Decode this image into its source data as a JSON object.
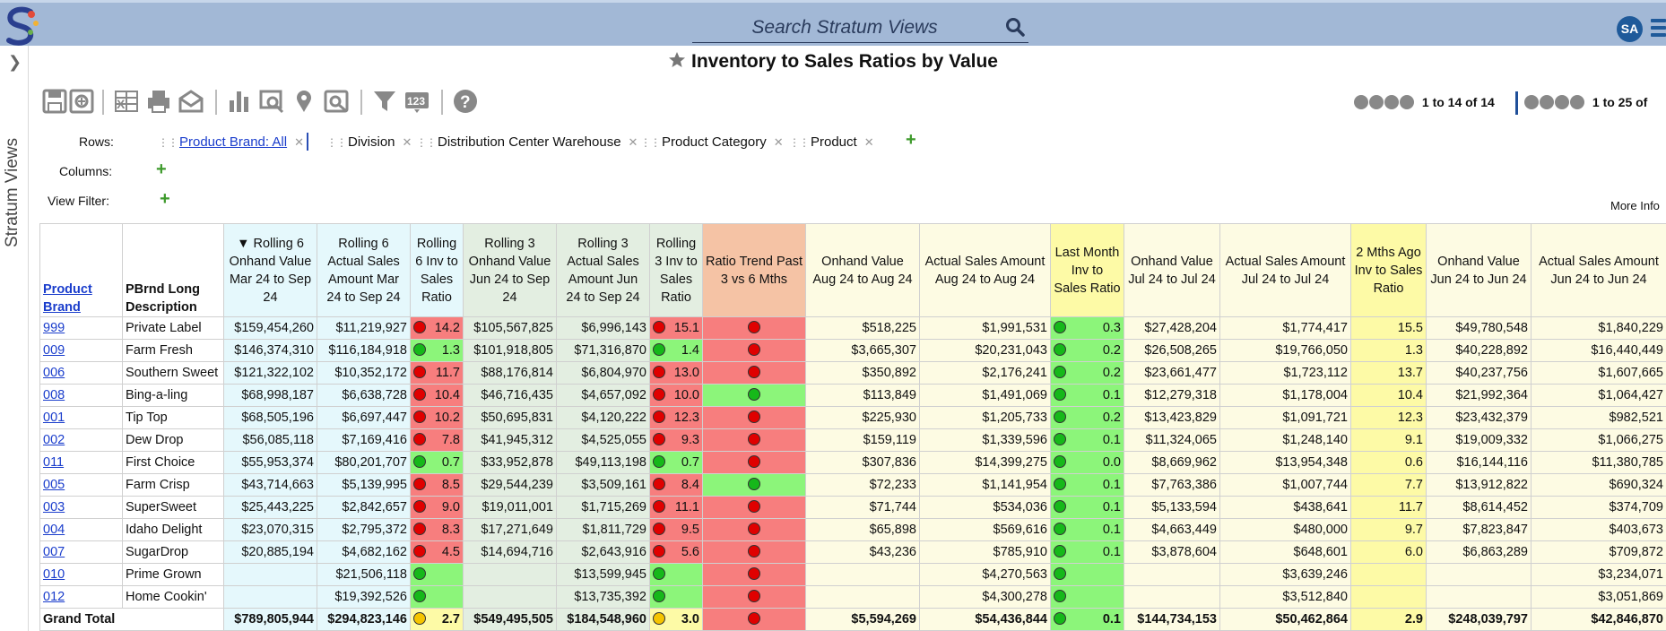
{
  "header": {
    "search_placeholder": "Search Stratum Views",
    "avatar_initials": "SA"
  },
  "side_panel": {
    "label": "Stratum Views"
  },
  "page": {
    "title": "Inventory to Sales Ratios by Value"
  },
  "pager": {
    "rows_text": "1 to 14 of 14",
    "cols_text": "1 to 25 of"
  },
  "controls": {
    "rows_label": "Rows:",
    "columns_label": "Columns:",
    "view_filter_label": "View Filter:",
    "row_chips": [
      "Product Brand: All",
      "Division",
      "Distribution Center Warehouse",
      "Product Category",
      "Product"
    ],
    "more_info": "More Info"
  },
  "colors": {
    "red": "#f77e7e",
    "green": "#8cf57a",
    "yellow": "#fdfaa6"
  },
  "table": {
    "headers": [
      "Product Brand",
      "PBrnd Long Description",
      "▼ Rolling 6 Onhand Value Mar 24 to Sep 24",
      "Rolling 6 Actual Sales Amount Mar 24 to Sep 24",
      "Rolling 6 Inv to Sales Ratio",
      "Rolling 3 Onhand Value Jun 24 to Sep 24",
      "Rolling 3 Actual Sales Amount Jun 24 to Sep 24",
      "Rolling 3 Inv to Sales Ratio",
      "Ratio Trend Past 3 vs 6 Mths",
      "Onhand Value Aug 24 to Aug 24",
      "Actual Sales Amount Aug 24 to Aug 24",
      "Last Month Inv to Sales Ratio",
      "Onhand Value Jul 24 to Jul 24",
      "Actual Sales Amount Jul 24 to Jul 24",
      "2 Mths Ago Inv to Sales Ratio",
      "Onhand Value Jun 24 to Jun 24",
      "Actual Sales Amount Jun 24 to Jun 24"
    ],
    "rows": [
      {
        "code": "999",
        "desc": "Private Label",
        "r6ov": "$159,454,260",
        "r6sa": "$11,219,927",
        "r6r": "14.2",
        "r6c": "red",
        "r3ov": "$105,567,825",
        "r3sa": "$6,996,143",
        "r3r": "15.1",
        "r3c": "red",
        "trend": "red",
        "aug_ov": "$518,225",
        "aug_sa": "$1,991,531",
        "lm": "0.3",
        "lmc": "green",
        "jul_ov": "$27,428,204",
        "jul_sa": "$1,774,417",
        "m2": "15.5",
        "jun_ov": "$49,780,548",
        "jun_sa": "$1,840,229"
      },
      {
        "code": "009",
        "desc": "Farm Fresh",
        "r6ov": "$146,374,310",
        "r6sa": "$116,184,918",
        "r6r": "1.3",
        "r6c": "green",
        "r3ov": "$101,918,805",
        "r3sa": "$71,316,870",
        "r3r": "1.4",
        "r3c": "green",
        "trend": "red",
        "aug_ov": "$3,665,307",
        "aug_sa": "$20,231,043",
        "lm": "0.2",
        "lmc": "green",
        "jul_ov": "$26,508,265",
        "jul_sa": "$19,766,050",
        "m2": "1.3",
        "jun_ov": "$40,228,892",
        "jun_sa": "$16,440,449"
      },
      {
        "code": "006",
        "desc": "Southern Sweet",
        "r6ov": "$121,322,102",
        "r6sa": "$10,352,172",
        "r6r": "11.7",
        "r6c": "red",
        "r3ov": "$88,176,814",
        "r3sa": "$6,804,970",
        "r3r": "13.0",
        "r3c": "red",
        "trend": "red",
        "aug_ov": "$350,892",
        "aug_sa": "$2,176,241",
        "lm": "0.2",
        "lmc": "green",
        "jul_ov": "$23,661,477",
        "jul_sa": "$1,723,112",
        "m2": "13.7",
        "jun_ov": "$40,237,756",
        "jun_sa": "$1,607,665"
      },
      {
        "code": "008",
        "desc": "Bing-a-ling",
        "r6ov": "$68,998,187",
        "r6sa": "$6,638,728",
        "r6r": "10.4",
        "r6c": "red",
        "r3ov": "$46,716,435",
        "r3sa": "$4,657,092",
        "r3r": "10.0",
        "r3c": "red",
        "trend": "green",
        "aug_ov": "$113,849",
        "aug_sa": "$1,491,069",
        "lm": "0.1",
        "lmc": "green",
        "jul_ov": "$12,279,318",
        "jul_sa": "$1,178,004",
        "m2": "10.4",
        "jun_ov": "$21,992,364",
        "jun_sa": "$1,064,427"
      },
      {
        "code": "001",
        "desc": "Tip Top",
        "r6ov": "$68,505,196",
        "r6sa": "$6,697,447",
        "r6r": "10.2",
        "r6c": "red",
        "r3ov": "$50,695,831",
        "r3sa": "$4,120,222",
        "r3r": "12.3",
        "r3c": "red",
        "trend": "red",
        "aug_ov": "$225,930",
        "aug_sa": "$1,205,733",
        "lm": "0.2",
        "lmc": "green",
        "jul_ov": "$13,423,829",
        "jul_sa": "$1,091,721",
        "m2": "12.3",
        "jun_ov": "$23,432,379",
        "jun_sa": "$982,521"
      },
      {
        "code": "002",
        "desc": "Dew Drop",
        "r6ov": "$56,085,118",
        "r6sa": "$7,169,416",
        "r6r": "7.8",
        "r6c": "red",
        "r3ov": "$41,945,312",
        "r3sa": "$4,525,055",
        "r3r": "9.3",
        "r3c": "red",
        "trend": "red",
        "aug_ov": "$159,119",
        "aug_sa": "$1,339,596",
        "lm": "0.1",
        "lmc": "green",
        "jul_ov": "$11,324,065",
        "jul_sa": "$1,248,140",
        "m2": "9.1",
        "jun_ov": "$19,009,332",
        "jun_sa": "$1,066,275"
      },
      {
        "code": "011",
        "desc": "First Choice",
        "r6ov": "$55,953,374",
        "r6sa": "$80,201,707",
        "r6r": "0.7",
        "r6c": "green",
        "r3ov": "$33,952,878",
        "r3sa": "$49,113,198",
        "r3r": "0.7",
        "r3c": "green",
        "trend": "red",
        "aug_ov": "$307,836",
        "aug_sa": "$14,399,275",
        "lm": "0.0",
        "lmc": "green",
        "jul_ov": "$8,669,962",
        "jul_sa": "$13,954,348",
        "m2": "0.6",
        "jun_ov": "$16,144,116",
        "jun_sa": "$11,380,785"
      },
      {
        "code": "005",
        "desc": "Farm Crisp",
        "r6ov": "$43,714,663",
        "r6sa": "$5,139,995",
        "r6r": "8.5",
        "r6c": "red",
        "r3ov": "$29,544,239",
        "r3sa": "$3,509,161",
        "r3r": "8.4",
        "r3c": "red",
        "trend": "green",
        "aug_ov": "$72,233",
        "aug_sa": "$1,141,954",
        "lm": "0.1",
        "lmc": "green",
        "jul_ov": "$7,763,386",
        "jul_sa": "$1,007,744",
        "m2": "7.7",
        "jun_ov": "$13,912,822",
        "jun_sa": "$690,324"
      },
      {
        "code": "003",
        "desc": "SuperSweet",
        "r6ov": "$25,443,225",
        "r6sa": "$2,842,657",
        "r6r": "9.0",
        "r6c": "red",
        "r3ov": "$19,011,001",
        "r3sa": "$1,715,269",
        "r3r": "11.1",
        "r3c": "red",
        "trend": "red",
        "aug_ov": "$71,744",
        "aug_sa": "$534,036",
        "lm": "0.1",
        "lmc": "green",
        "jul_ov": "$5,133,594",
        "jul_sa": "$438,641",
        "m2": "11.7",
        "jun_ov": "$8,614,452",
        "jun_sa": "$374,709"
      },
      {
        "code": "004",
        "desc": "Idaho Delight",
        "r6ov": "$23,070,315",
        "r6sa": "$2,795,372",
        "r6r": "8.3",
        "r6c": "red",
        "r3ov": "$17,271,649",
        "r3sa": "$1,811,729",
        "r3r": "9.5",
        "r3c": "red",
        "trend": "red",
        "aug_ov": "$65,898",
        "aug_sa": "$569,616",
        "lm": "0.1",
        "lmc": "green",
        "jul_ov": "$4,663,449",
        "jul_sa": "$480,000",
        "m2": "9.7",
        "jun_ov": "$7,823,847",
        "jun_sa": "$403,673"
      },
      {
        "code": "007",
        "desc": "SugarDrop",
        "r6ov": "$20,885,194",
        "r6sa": "$4,682,162",
        "r6r": "4.5",
        "r6c": "red",
        "r3ov": "$14,694,716",
        "r3sa": "$2,643,916",
        "r3r": "5.6",
        "r3c": "red",
        "trend": "red",
        "aug_ov": "$43,236",
        "aug_sa": "$785,910",
        "lm": "0.1",
        "lmc": "green",
        "jul_ov": "$3,878,604",
        "jul_sa": "$648,601",
        "m2": "6.0",
        "jun_ov": "$6,863,289",
        "jun_sa": "$709,872"
      },
      {
        "code": "010",
        "desc": "Prime Grown",
        "r6ov": "",
        "r6sa": "$21,506,118",
        "r6r": "",
        "r6c": "green",
        "r3ov": "",
        "r3sa": "$13,599,945",
        "r3r": "",
        "r3c": "green",
        "trend": "red",
        "aug_ov": "",
        "aug_sa": "$4,270,563",
        "lm": "",
        "lmc": "green",
        "jul_ov": "",
        "jul_sa": "$3,639,246",
        "m2": "",
        "jun_ov": "",
        "jun_sa": "$3,234,071"
      },
      {
        "code": "012",
        "desc": "Home Cookin'",
        "r6ov": "",
        "r6sa": "$19,392,526",
        "r6r": "",
        "r6c": "green",
        "r3ov": "",
        "r3sa": "$13,735,392",
        "r3r": "",
        "r3c": "green",
        "trend": "red",
        "aug_ov": "",
        "aug_sa": "$4,300,278",
        "lm": "",
        "lmc": "green",
        "jul_ov": "",
        "jul_sa": "$3,512,840",
        "m2": "",
        "jun_ov": "",
        "jun_sa": "$3,051,869"
      }
    ],
    "total": {
      "label": "Grand Total",
      "r6ov": "$789,805,944",
      "r6sa": "$294,823,146",
      "r6r": "2.7",
      "r6c": "yellow",
      "r3ov": "$549,495,505",
      "r3sa": "$184,548,960",
      "r3r": "3.0",
      "r3c": "yellow",
      "trend": "red",
      "aug_ov": "$5,594,269",
      "aug_sa": "$54,436,844",
      "lm": "0.1",
      "lmc": "green",
      "jul_ov": "$144,734,153",
      "jul_sa": "$50,462,864",
      "m2": "2.9",
      "jun_ov": "$248,039,797",
      "jun_sa": "$42,846,870"
    }
  }
}
